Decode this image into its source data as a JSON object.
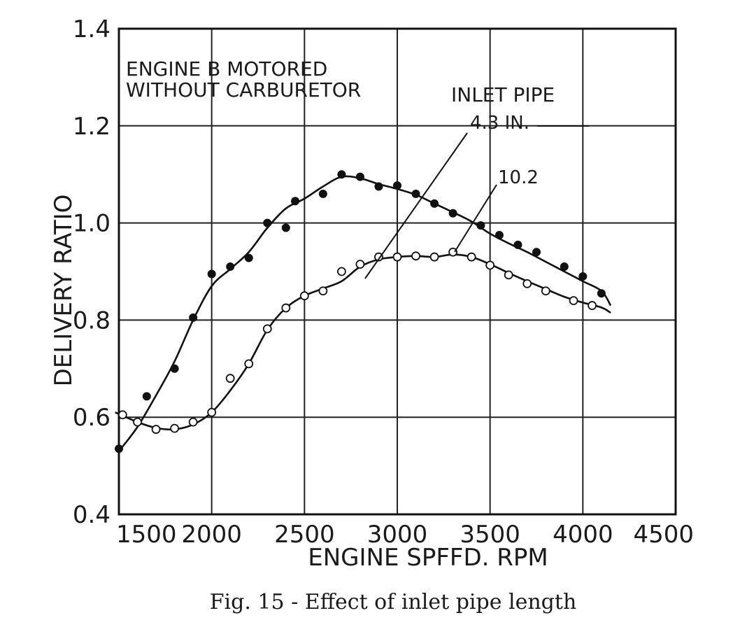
{
  "caption": "Fig. 15 - Effect of inlet pipe length",
  "annotations": {
    "box_line1": "ENGINE B MOTORED",
    "box_line2": "WITHOUT CARBURETOR",
    "legend_title": "INLET PIPE",
    "label_a": "4.3 IN.",
    "label_b": "10.2"
  },
  "chart_data": {
    "type": "scatter",
    "xlabel": "ENGINE SPFFD. RPM",
    "ylabel": "DELIVERY RATIO",
    "xlim": [
      1500,
      4500
    ],
    "ylim": [
      0.4,
      1.4
    ],
    "xticks": [
      1500,
      2000,
      2500,
      3000,
      3500,
      4000,
      4500
    ],
    "xtick_labels": [
      "1500",
      "2000",
      "2500",
      "3000",
      "3500",
      "4000",
      "4500"
    ],
    "yticks": [
      0.4,
      0.6,
      0.8,
      1.0,
      1.2,
      1.4
    ],
    "ytick_labels": [
      "0.4",
      "0.6",
      "0.8",
      "1.0",
      "1.2",
      "1.4"
    ],
    "grid": true,
    "series": [
      {
        "name": "4.3 IN.",
        "marker": "filled",
        "color": "#111111",
        "points": [
          [
            1500,
            0.535
          ],
          [
            1650,
            0.643
          ],
          [
            1800,
            0.7
          ],
          [
            1900,
            0.805
          ],
          [
            2000,
            0.895
          ],
          [
            2100,
            0.91
          ],
          [
            2200,
            0.928
          ],
          [
            2300,
            1.0
          ],
          [
            2400,
            0.99
          ],
          [
            2450,
            1.045
          ],
          [
            2600,
            1.06
          ],
          [
            2700,
            1.1
          ],
          [
            2800,
            1.095
          ],
          [
            2900,
            1.075
          ],
          [
            3000,
            1.077
          ],
          [
            3100,
            1.06
          ],
          [
            3200,
            1.04
          ],
          [
            3300,
            1.02
          ],
          [
            3450,
            0.995
          ],
          [
            3550,
            0.975
          ],
          [
            3650,
            0.955
          ],
          [
            3750,
            0.94
          ],
          [
            3900,
            0.91
          ],
          [
            4000,
            0.89
          ],
          [
            4100,
            0.855
          ]
        ],
        "curve": [
          [
            1500,
            0.53
          ],
          [
            1600,
            0.58
          ],
          [
            1700,
            0.645
          ],
          [
            1800,
            0.715
          ],
          [
            1900,
            0.8
          ],
          [
            2000,
            0.87
          ],
          [
            2100,
            0.905
          ],
          [
            2200,
            0.94
          ],
          [
            2300,
            0.99
          ],
          [
            2400,
            1.03
          ],
          [
            2500,
            1.05
          ],
          [
            2600,
            1.075
          ],
          [
            2700,
            1.095
          ],
          [
            2800,
            1.092
          ],
          [
            2900,
            1.08
          ],
          [
            3000,
            1.07
          ],
          [
            3100,
            1.058
          ],
          [
            3200,
            1.04
          ],
          [
            3300,
            1.022
          ],
          [
            3400,
            1.003
          ],
          [
            3500,
            0.978
          ],
          [
            3600,
            0.958
          ],
          [
            3700,
            0.94
          ],
          [
            3800,
            0.92
          ],
          [
            3900,
            0.9
          ],
          [
            4000,
            0.88
          ],
          [
            4100,
            0.86
          ],
          [
            4150,
            0.83
          ]
        ]
      },
      {
        "name": "10.2",
        "marker": "open",
        "color": "#111111",
        "points": [
          [
            1520,
            0.605
          ],
          [
            1600,
            0.59
          ],
          [
            1700,
            0.575
          ],
          [
            1800,
            0.577
          ],
          [
            1900,
            0.59
          ],
          [
            2000,
            0.61
          ],
          [
            2100,
            0.68
          ],
          [
            2200,
            0.71
          ],
          [
            2300,
            0.782
          ],
          [
            2400,
            0.825
          ],
          [
            2500,
            0.85
          ],
          [
            2600,
            0.86
          ],
          [
            2700,
            0.9
          ],
          [
            2800,
            0.915
          ],
          [
            2900,
            0.93
          ],
          [
            3000,
            0.93
          ],
          [
            3100,
            0.932
          ],
          [
            3200,
            0.93
          ],
          [
            3300,
            0.94
          ],
          [
            3400,
            0.93
          ],
          [
            3500,
            0.913
          ],
          [
            3600,
            0.893
          ],
          [
            3700,
            0.875
          ],
          [
            3800,
            0.86
          ],
          [
            3950,
            0.84
          ],
          [
            4050,
            0.83
          ]
        ],
        "curve": [
          [
            1480,
            0.61
          ],
          [
            1600,
            0.59
          ],
          [
            1700,
            0.578
          ],
          [
            1800,
            0.575
          ],
          [
            1900,
            0.585
          ],
          [
            2000,
            0.61
          ],
          [
            2100,
            0.655
          ],
          [
            2200,
            0.71
          ],
          [
            2300,
            0.78
          ],
          [
            2400,
            0.825
          ],
          [
            2500,
            0.85
          ],
          [
            2600,
            0.865
          ],
          [
            2700,
            0.88
          ],
          [
            2800,
            0.91
          ],
          [
            2900,
            0.925
          ],
          [
            3000,
            0.93
          ],
          [
            3100,
            0.932
          ],
          [
            3200,
            0.93
          ],
          [
            3300,
            0.935
          ],
          [
            3400,
            0.93
          ],
          [
            3500,
            0.915
          ],
          [
            3600,
            0.897
          ],
          [
            3700,
            0.88
          ],
          [
            3800,
            0.864
          ],
          [
            3900,
            0.848
          ],
          [
            4000,
            0.836
          ],
          [
            4100,
            0.826
          ],
          [
            4150,
            0.815
          ]
        ]
      }
    ]
  }
}
